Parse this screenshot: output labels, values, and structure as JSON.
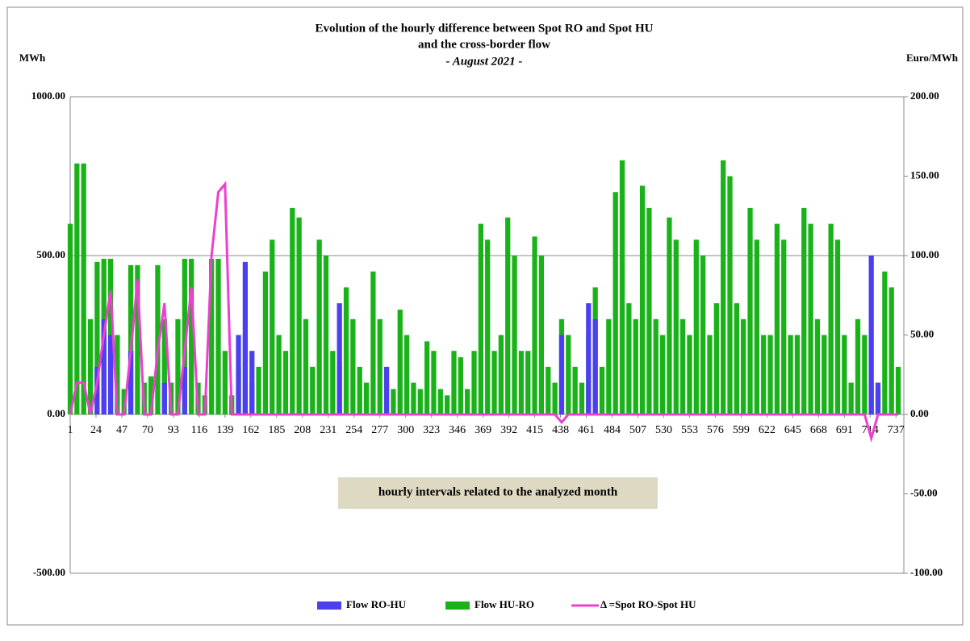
{
  "chart_data": {
    "type": "bar-line",
    "title": "Evolution of the hourly  difference between Spot RO and Spot HU",
    "subtitle": "and the cross-border flow",
    "period": "- August 2021 -",
    "ylabel": "MWh",
    "y2label": "Euro/MWh",
    "annotation": "hourly intervals related to the analyzed month",
    "x": [
      1,
      7,
      13,
      19,
      25,
      31,
      37,
      43,
      49,
      55,
      61,
      67,
      73,
      79,
      85,
      91,
      97,
      103,
      109,
      115,
      121,
      127,
      133,
      139,
      145,
      151,
      157,
      163,
      169,
      175,
      181,
      187,
      193,
      199,
      205,
      211,
      217,
      223,
      229,
      235,
      241,
      247,
      253,
      259,
      265,
      271,
      277,
      283,
      289,
      295,
      301,
      307,
      313,
      319,
      325,
      331,
      337,
      343,
      349,
      355,
      361,
      367,
      373,
      379,
      385,
      391,
      397,
      403,
      409,
      415,
      421,
      427,
      433,
      439,
      445,
      451,
      457,
      463,
      469,
      475,
      481,
      487,
      493,
      499,
      505,
      511,
      517,
      523,
      529,
      535,
      541,
      547,
      553,
      559,
      565,
      571,
      577,
      583,
      589,
      595,
      601,
      607,
      613,
      619,
      625,
      631,
      637,
      643,
      649,
      655,
      661,
      667,
      673,
      679,
      685,
      691,
      697,
      703,
      709,
      715,
      721,
      727,
      733,
      739
    ],
    "series": [
      {
        "name": "Flow HU-RO",
        "type": "bar",
        "color": "#19b219",
        "values": [
          600,
          790,
          790,
          300,
          480,
          490,
          490,
          250,
          80,
          470,
          470,
          100,
          120,
          470,
          300,
          100,
          300,
          490,
          490,
          100,
          60,
          490,
          490,
          200,
          60,
          150,
          250,
          100,
          150,
          450,
          550,
          250,
          200,
          650,
          620,
          300,
          150,
          550,
          500,
          200,
          150,
          400,
          300,
          150,
          100,
          450,
          300,
          100,
          80,
          330,
          250,
          100,
          80,
          230,
          200,
          80,
          60,
          200,
          180,
          80,
          200,
          600,
          550,
          200,
          250,
          620,
          500,
          200,
          200,
          560,
          500,
          150,
          100,
          300,
          250,
          150,
          100,
          250,
          400,
          150,
          300,
          700,
          800,
          350,
          300,
          720,
          650,
          300,
          250,
          620,
          550,
          300,
          250,
          550,
          500,
          250,
          350,
          800,
          750,
          350,
          300,
          650,
          550,
          250,
          250,
          600,
          550,
          250,
          250,
          650,
          600,
          300,
          250,
          600,
          550,
          250,
          100,
          300,
          250,
          100,
          80,
          450,
          400,
          150
        ]
      },
      {
        "name": "Flow RO-HU",
        "type": "bar",
        "color": "#4b3ff0",
        "values": [
          0,
          0,
          0,
          0,
          150,
          300,
          250,
          0,
          0,
          200,
          0,
          0,
          0,
          0,
          100,
          0,
          0,
          150,
          0,
          0,
          0,
          0,
          0,
          0,
          0,
          250,
          480,
          200,
          0,
          0,
          0,
          0,
          0,
          0,
          0,
          0,
          0,
          0,
          0,
          0,
          350,
          0,
          0,
          0,
          0,
          0,
          0,
          150,
          0,
          0,
          0,
          0,
          0,
          0,
          0,
          0,
          0,
          0,
          0,
          0,
          0,
          0,
          0,
          0,
          0,
          0,
          0,
          0,
          0,
          0,
          0,
          0,
          0,
          250,
          0,
          0,
          0,
          350,
          300,
          0,
          0,
          0,
          0,
          0,
          0,
          0,
          0,
          0,
          0,
          0,
          0,
          0,
          0,
          0,
          0,
          0,
          0,
          0,
          0,
          0,
          0,
          0,
          0,
          0,
          0,
          0,
          0,
          0,
          0,
          0,
          0,
          0,
          0,
          0,
          0,
          0,
          0,
          0,
          0,
          500,
          100,
          0,
          0,
          0
        ]
      },
      {
        "name": "Δ =Spot  RO-Spot  HU",
        "type": "line",
        "axis": "y2",
        "color": "#ee3fd0",
        "values": [
          0,
          20,
          20,
          0,
          20,
          50,
          78,
          0,
          0,
          40,
          85,
          0,
          0,
          40,
          70,
          0,
          0,
          40,
          80,
          0,
          0,
          100,
          140,
          145,
          0,
          0,
          0,
          0,
          0,
          0,
          0,
          0,
          0,
          0,
          0,
          0,
          0,
          0,
          0,
          0,
          0,
          0,
          0,
          0,
          0,
          0,
          0,
          0,
          0,
          0,
          0,
          0,
          0,
          0,
          0,
          0,
          0,
          0,
          0,
          0,
          0,
          0,
          0,
          0,
          0,
          0,
          0,
          0,
          0,
          0,
          0,
          0,
          0,
          -5,
          0,
          0,
          0,
          0,
          0,
          0,
          0,
          0,
          0,
          0,
          0,
          0,
          0,
          0,
          0,
          0,
          0,
          0,
          0,
          0,
          0,
          0,
          0,
          0,
          0,
          0,
          0,
          0,
          0,
          0,
          0,
          0,
          0,
          0,
          0,
          0,
          0,
          0,
          0,
          0,
          0,
          0,
          0,
          0,
          0,
          -15,
          0,
          0,
          0,
          0
        ]
      }
    ],
    "legend_order": [
      1,
      0,
      2
    ],
    "xlim": [
      1,
      744
    ],
    "xticks": [
      1,
      24,
      47,
      70,
      93,
      116,
      139,
      162,
      185,
      208,
      231,
      254,
      277,
      300,
      323,
      346,
      369,
      392,
      415,
      438,
      461,
      484,
      507,
      530,
      553,
      576,
      599,
      622,
      645,
      668,
      691,
      714,
      737
    ],
    "ylim": [
      -500,
      1000
    ],
    "yticks": [
      {
        "value": -500,
        "label": "-500.00"
      },
      {
        "value": 0,
        "label": "0.00"
      },
      {
        "value": 500,
        "label": "500.00"
      },
      {
        "value": 1000,
        "label": "1000.00"
      }
    ],
    "y2lim": [
      -100,
      200
    ],
    "y2ticks": [
      {
        "value": -100,
        "label": "-100.00"
      },
      {
        "value": -50,
        "label": "-50.00"
      },
      {
        "value": 0,
        "label": "0.00"
      },
      {
        "value": 50,
        "label": "50.00"
      },
      {
        "value": 100,
        "label": "100.00"
      },
      {
        "value": 150,
        "label": "150.00"
      },
      {
        "value": 200,
        "label": "200.00"
      }
    ],
    "grid": true
  }
}
